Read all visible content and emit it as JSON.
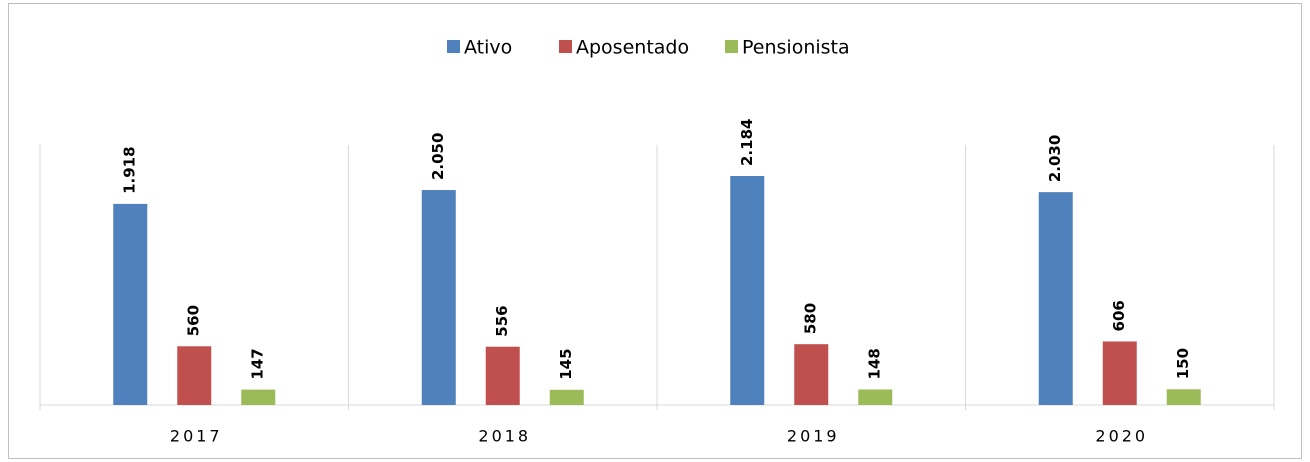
{
  "chart_data": {
    "type": "bar",
    "categories": [
      "2017",
      "2018",
      "2019",
      "2020"
    ],
    "series": [
      {
        "name": "Ativo",
        "color": "#4f81bd",
        "values": [
          1918,
          2050,
          2184,
          2030
        ],
        "value_labels": [
          "1.918",
          "2.050",
          "2.184",
          "2.030"
        ]
      },
      {
        "name": "Aposentado",
        "color": "#c0504d",
        "values": [
          560,
          556,
          580,
          606
        ]
      },
      {
        "name": "Pensionista",
        "color": "#9bbb59",
        "values": [
          147,
          145,
          148,
          150
        ]
      }
    ],
    "legend": "top"
  }
}
